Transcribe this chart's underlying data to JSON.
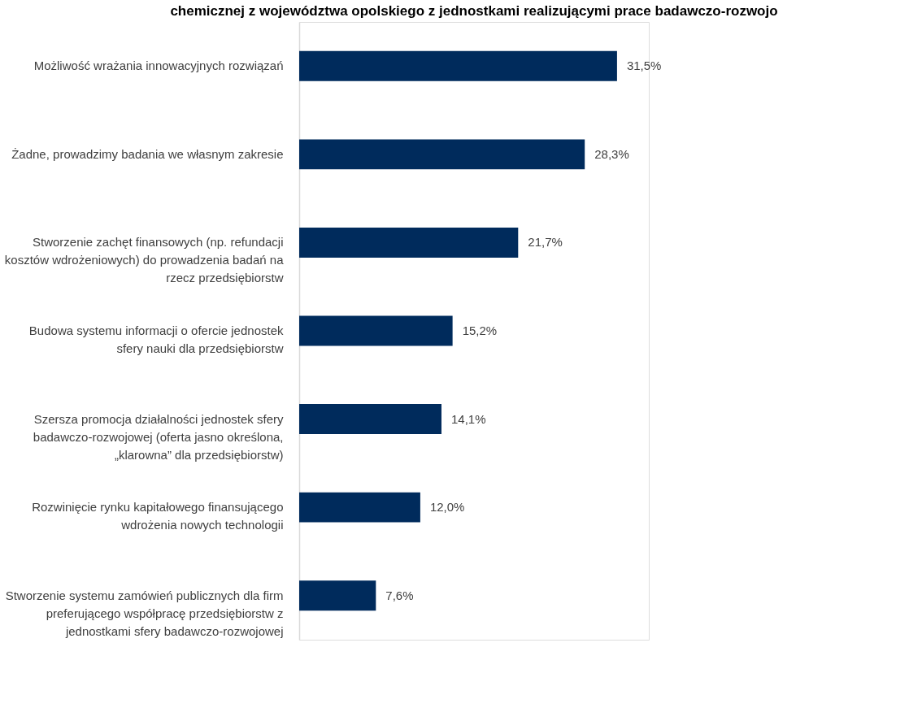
{
  "chart_data": {
    "type": "bar",
    "orientation": "horizontal",
    "title": "chemicznej z województwa opolskiego z jednostkami realizującymi prace badawczo-rozwojo",
    "categories": [
      "Możliwość wrażania innowacyjnych rozwiązań",
      "Żadne, prowadzimy badania we własnym zakresie",
      "Stworzenie zachęt finansowych (np. refundacji kosztów wdrożeniowych) do prowadzenia badań na rzecz przedsiębiorstw",
      "Budowa systemu informacji o ofercie jednostek sfery nauki dla przedsiębiorstw",
      "Szersza promocja działalności jednostek sfery badawczo-rozwojowej (oferta jasno określona, „klarowna” dla przedsiębiorstw)",
      "Rozwinięcie rynku kapitałowego finansującego wdrożenia nowych technologii",
      "Stworzenie systemu zamówień publicznych dla firm preferującego współpracę przedsiębiorstw z jednostkami sfery badawczo-rozwojowej"
    ],
    "values": [
      31.5,
      28.3,
      21.7,
      15.2,
      14.1,
      12.0,
      7.6
    ],
    "value_labels": [
      "31,5%",
      "28,3%",
      "21,7%",
      "15,2%",
      "14,1%",
      "12,0%",
      "7,6%"
    ],
    "color": "#002b5c"
  }
}
